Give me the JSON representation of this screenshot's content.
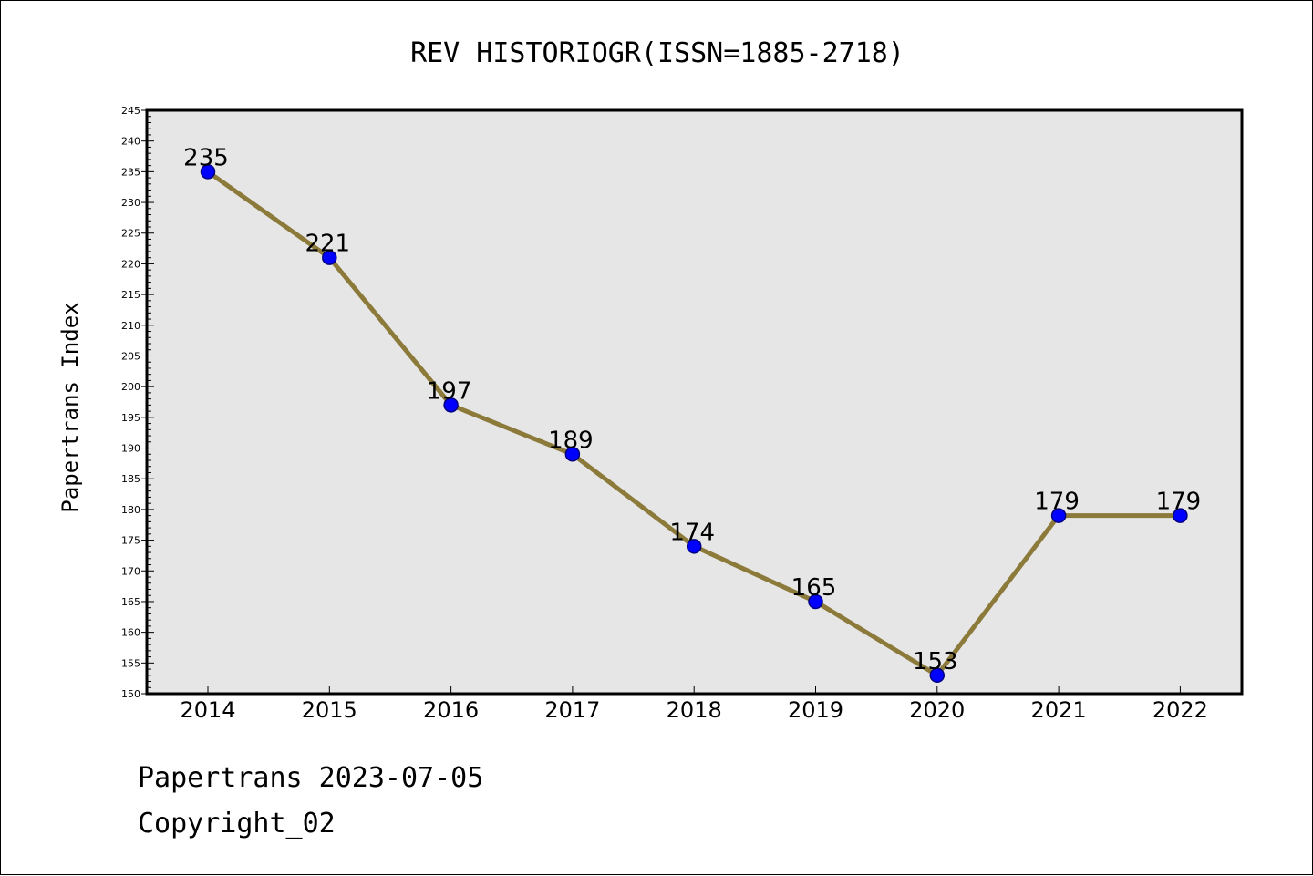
{
  "chart_data": {
    "type": "line",
    "title": "REV HISTORIOGR(ISSN=1885-2718)",
    "xlabel": "",
    "ylabel": "Papertrans Index",
    "categories": [
      "2014",
      "2015",
      "2016",
      "2017",
      "2018",
      "2019",
      "2020",
      "2021",
      "2022"
    ],
    "series": [
      {
        "values": [
          235,
          221,
          197,
          189,
          174,
          165,
          153,
          179,
          179
        ]
      }
    ],
    "data_labels": [
      "235",
      "221",
      "197",
      "189",
      "174",
      "165",
      "153",
      "179",
      "179"
    ],
    "ylim": [
      150,
      245
    ],
    "y_major_step": 5,
    "y_ticks": [
      "150",
      "155",
      "160",
      "165",
      "170",
      "175",
      "180",
      "185",
      "190",
      "195",
      "200",
      "205",
      "210",
      "215",
      "220",
      "225",
      "230",
      "235",
      "240",
      "245"
    ],
    "grid": false,
    "legend": "none",
    "colors": {
      "line": "#8c7a3a",
      "marker_fill": "#0000ff",
      "marker_stroke": "#000080",
      "plot_background": "#e6e6e6"
    }
  },
  "footer": {
    "line1": "Papertrans 2023-07-05",
    "line2": "Copyright_02"
  }
}
